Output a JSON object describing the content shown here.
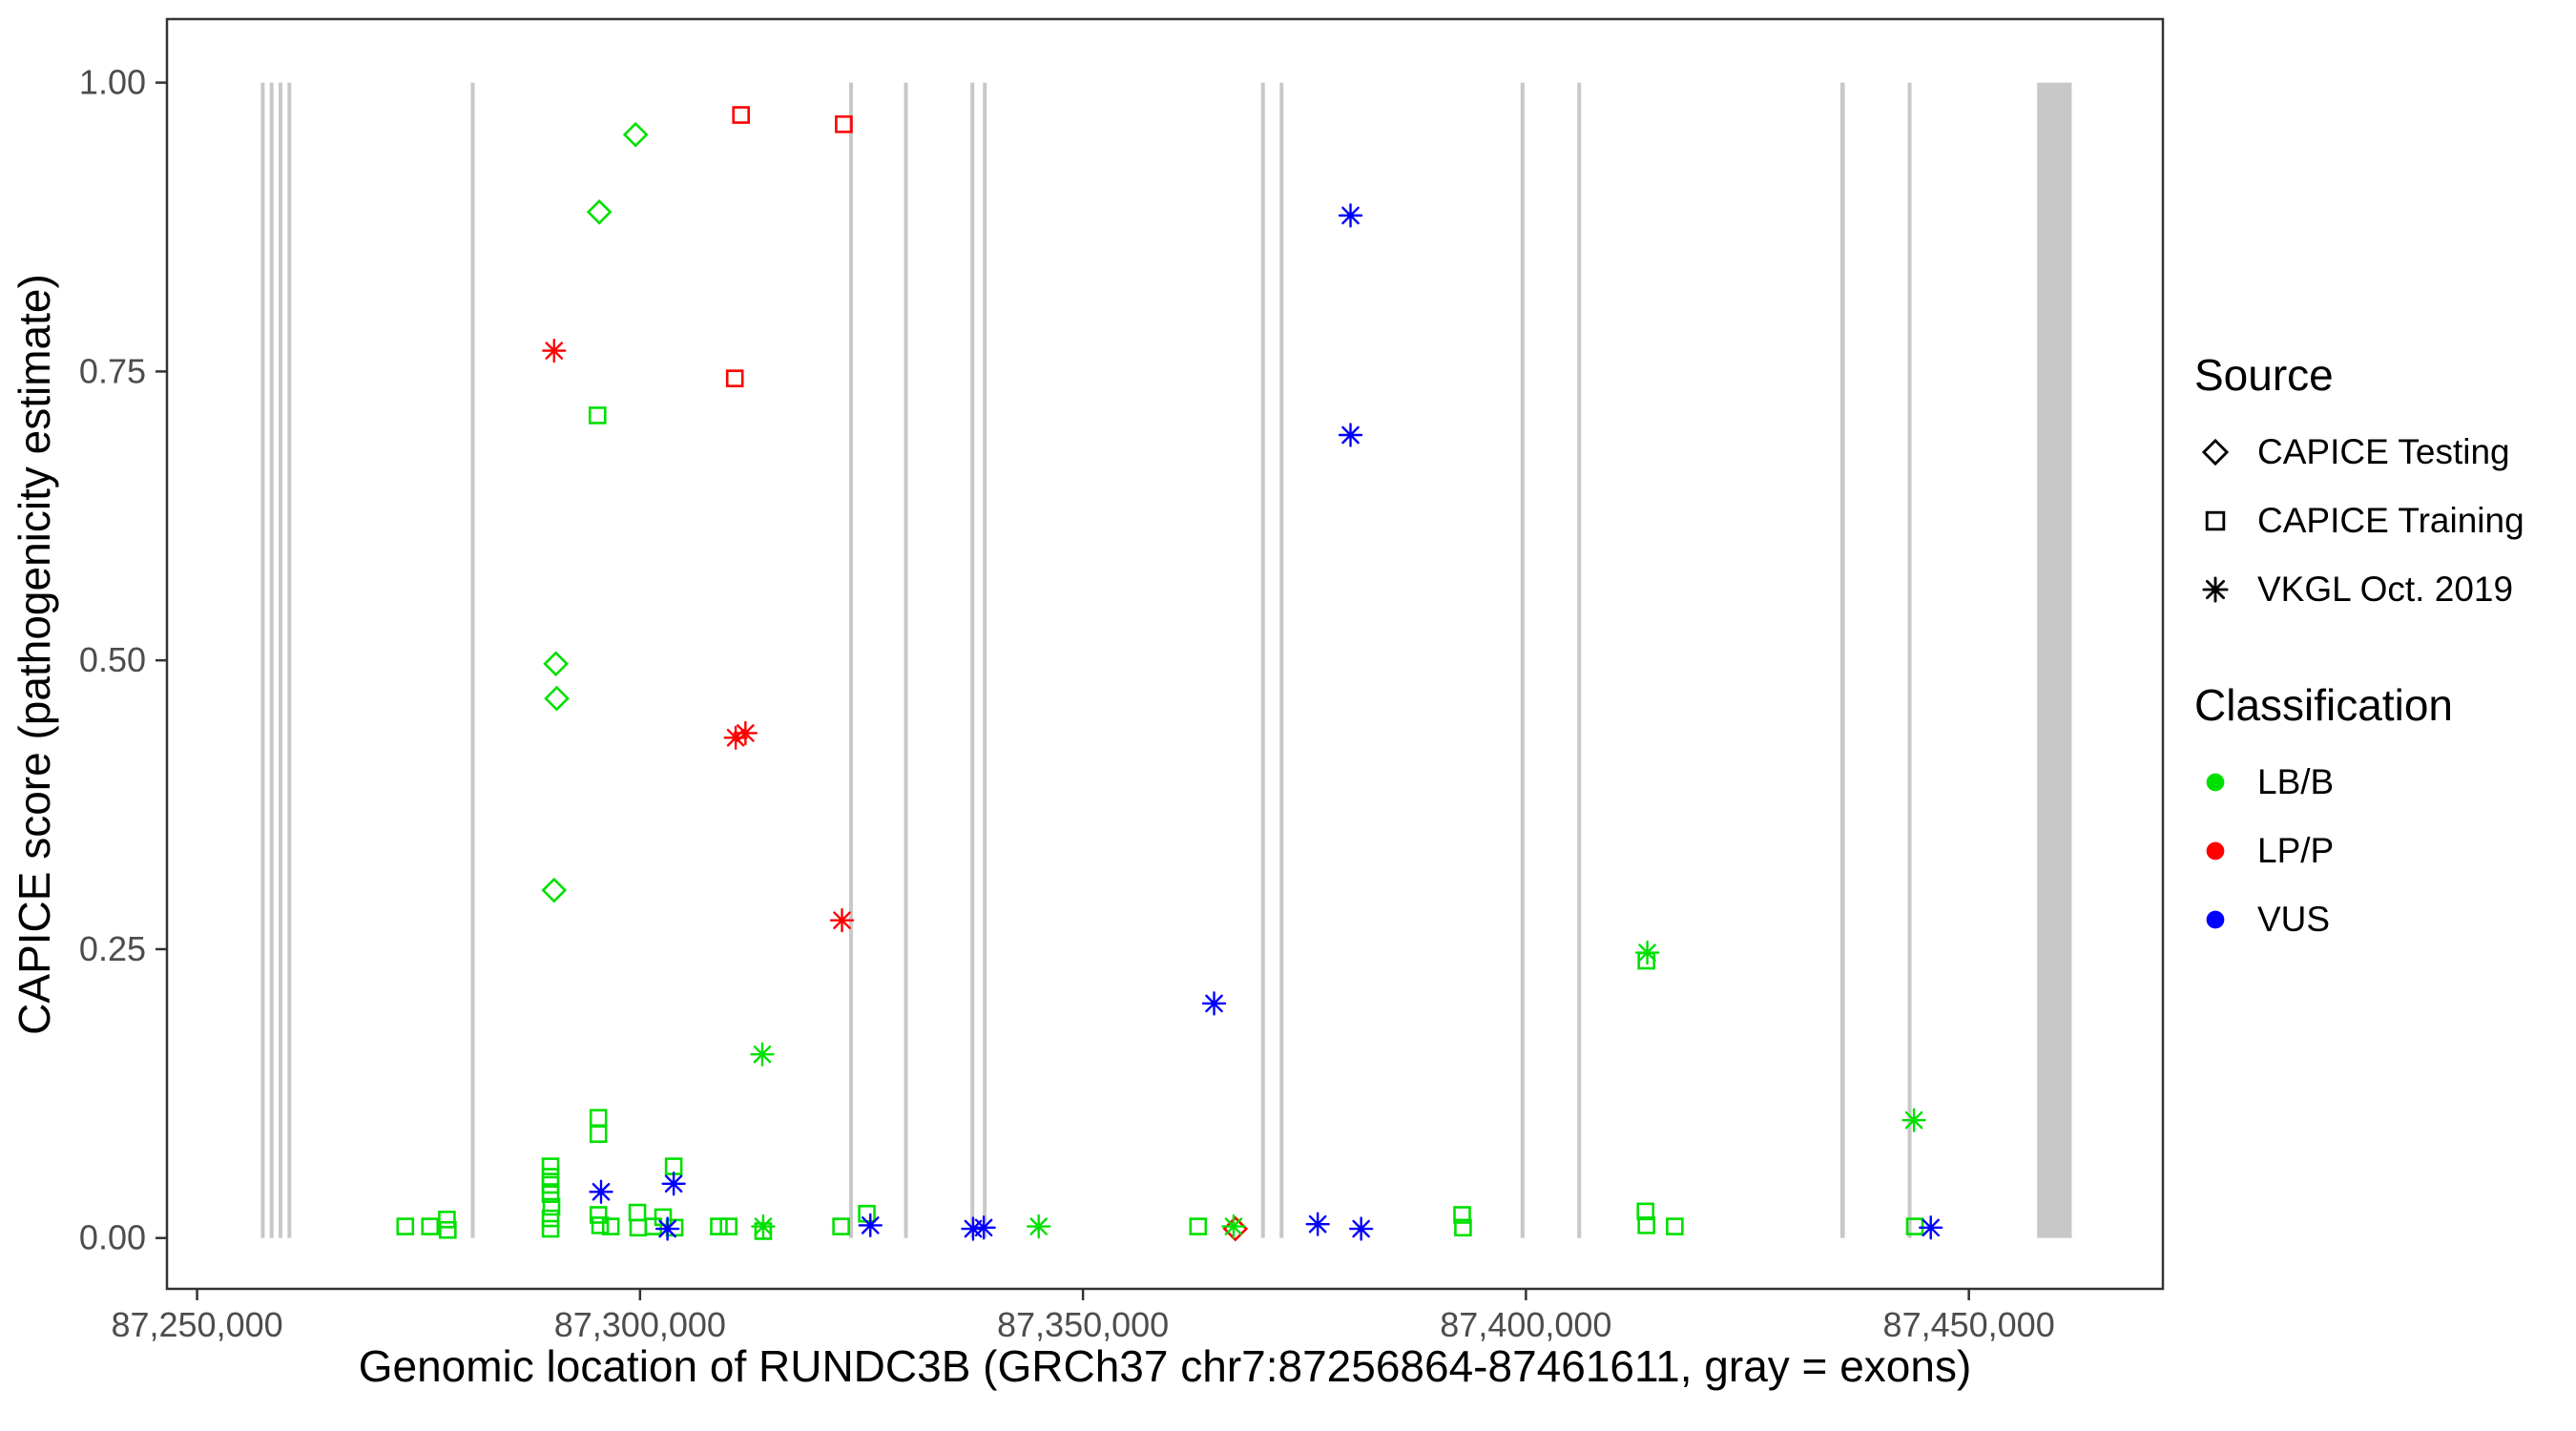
{
  "chart_data": {
    "type": "scatter",
    "xlabel": "Genomic location of RUNDC3B (GRCh37 chr7:87256864-87461611, gray = exons)",
    "ylabel": "CAPICE score (pathogenicity estimate)",
    "x_domain": [
      87246600,
      87471900
    ],
    "y_domain": [
      -0.044,
      1.055
    ],
    "x_ticks": [
      {
        "value": 87250000,
        "label": "87,250,000"
      },
      {
        "value": 87300000,
        "label": "87,300,000"
      },
      {
        "value": 87350000,
        "label": "87,350,000"
      },
      {
        "value": 87400000,
        "label": "87,400,000"
      },
      {
        "value": 87450000,
        "label": "87,450,000"
      }
    ],
    "y_ticks": [
      {
        "value": 0.0,
        "label": "0.00"
      },
      {
        "value": 0.25,
        "label": "0.25"
      },
      {
        "value": 0.5,
        "label": "0.50"
      },
      {
        "value": 0.75,
        "label": "0.75"
      },
      {
        "value": 1.0,
        "label": "1.00"
      }
    ],
    "legend_source": {
      "title": "Source",
      "items": [
        {
          "label": "CAPICE Testing",
          "shape": "diamond"
        },
        {
          "label": "CAPICE Training",
          "shape": "square"
        },
        {
          "label": "VKGL Oct. 2019",
          "shape": "asterisk"
        }
      ]
    },
    "legend_classification": {
      "title": "Classification",
      "items": [
        {
          "label": "LB/B",
          "color": "#00E000"
        },
        {
          "label": "LP/P",
          "color": "#FF0000"
        },
        {
          "label": "VUS",
          "color": "#0000FF"
        }
      ]
    },
    "colors": {
      "LB/B": "#00E000",
      "LP/P": "#FF0000",
      "VUS": "#0000FF"
    },
    "shapes": {
      "CAPICE Testing": "diamond",
      "CAPICE Training": "square",
      "VKGL Oct. 2019": "asterisk"
    },
    "exon_color": "#C8C8C8",
    "exon_band": [
      0,
      1
    ],
    "exons": [
      [
        87257200,
        87257600
      ],
      [
        87258200,
        87258600
      ],
      [
        87259200,
        87259600
      ],
      [
        87260200,
        87260600
      ],
      [
        87280900,
        87281300
      ],
      [
        87323600,
        87324000
      ],
      [
        87329800,
        87330200
      ],
      [
        87337300,
        87337700
      ],
      [
        87338700,
        87339100
      ],
      [
        87370100,
        87370500
      ],
      [
        87372200,
        87372600
      ],
      [
        87399400,
        87399800
      ],
      [
        87405800,
        87406200
      ],
      [
        87435500,
        87436000
      ],
      [
        87443100,
        87443500
      ],
      [
        87457700,
        87461611
      ]
    ],
    "points": [
      {
        "x": 87299500,
        "y": 0.955,
        "s": "CAPICE Testing",
        "c": "LB/B"
      },
      {
        "x": 87295400,
        "y": 0.888,
        "s": "CAPICE Testing",
        "c": "LB/B"
      },
      {
        "x": 87290500,
        "y": 0.497,
        "s": "CAPICE Testing",
        "c": "LB/B"
      },
      {
        "x": 87290600,
        "y": 0.467,
        "s": "CAPICE Testing",
        "c": "LB/B"
      },
      {
        "x": 87290300,
        "y": 0.301,
        "s": "CAPICE Testing",
        "c": "LB/B"
      },
      {
        "x": 87367200,
        "y": 0.008,
        "s": "CAPICE Testing",
        "c": "LP/P"
      },
      {
        "x": 87311400,
        "y": 0.972,
        "s": "CAPICE Training",
        "c": "LP/P"
      },
      {
        "x": 87323000,
        "y": 0.964,
        "s": "CAPICE Training",
        "c": "LP/P"
      },
      {
        "x": 87310700,
        "y": 0.744,
        "s": "CAPICE Training",
        "c": "LP/P"
      },
      {
        "x": 87295200,
        "y": 0.712,
        "s": "CAPICE Training",
        "c": "LB/B"
      },
      {
        "x": 87295300,
        "y": 0.104,
        "s": "CAPICE Training",
        "c": "LB/B"
      },
      {
        "x": 87295300,
        "y": 0.09,
        "s": "CAPICE Training",
        "c": "LB/B"
      },
      {
        "x": 87273500,
        "y": 0.01,
        "s": "CAPICE Training",
        "c": "LB/B"
      },
      {
        "x": 87276300,
        "y": 0.01,
        "s": "CAPICE Training",
        "c": "LB/B"
      },
      {
        "x": 87278200,
        "y": 0.016,
        "s": "CAPICE Training",
        "c": "LB/B"
      },
      {
        "x": 87278300,
        "y": 0.007,
        "s": "CAPICE Training",
        "c": "LB/B"
      },
      {
        "x": 87289900,
        "y": 0.062,
        "s": "CAPICE Training",
        "c": "LB/B"
      },
      {
        "x": 87289900,
        "y": 0.053,
        "s": "CAPICE Training",
        "c": "LB/B"
      },
      {
        "x": 87289900,
        "y": 0.046,
        "s": "CAPICE Training",
        "c": "LB/B"
      },
      {
        "x": 87289900,
        "y": 0.038,
        "s": "CAPICE Training",
        "c": "LB/B"
      },
      {
        "x": 87290000,
        "y": 0.027,
        "s": "CAPICE Training",
        "c": "LB/B"
      },
      {
        "x": 87289900,
        "y": 0.017,
        "s": "CAPICE Training",
        "c": "LB/B"
      },
      {
        "x": 87289900,
        "y": 0.008,
        "s": "CAPICE Training",
        "c": "LB/B"
      },
      {
        "x": 87295300,
        "y": 0.02,
        "s": "CAPICE Training",
        "c": "LB/B"
      },
      {
        "x": 87295500,
        "y": 0.011,
        "s": "CAPICE Training",
        "c": "LB/B"
      },
      {
        "x": 87296700,
        "y": 0.01,
        "s": "CAPICE Training",
        "c": "LB/B"
      },
      {
        "x": 87299700,
        "y": 0.022,
        "s": "CAPICE Training",
        "c": "LB/B"
      },
      {
        "x": 87299800,
        "y": 0.009,
        "s": "CAPICE Training",
        "c": "LB/B"
      },
      {
        "x": 87301500,
        "y": 0.01,
        "s": "CAPICE Training",
        "c": "LB/B"
      },
      {
        "x": 87302600,
        "y": 0.018,
        "s": "CAPICE Training",
        "c": "LB/B"
      },
      {
        "x": 87303800,
        "y": 0.062,
        "s": "CAPICE Training",
        "c": "LB/B"
      },
      {
        "x": 87303900,
        "y": 0.009,
        "s": "CAPICE Training",
        "c": "LB/B"
      },
      {
        "x": 87308900,
        "y": 0.01,
        "s": "CAPICE Training",
        "c": "LB/B"
      },
      {
        "x": 87310000,
        "y": 0.01,
        "s": "CAPICE Training",
        "c": "LB/B"
      },
      {
        "x": 87313900,
        "y": 0.006,
        "s": "CAPICE Training",
        "c": "LB/B"
      },
      {
        "x": 87322700,
        "y": 0.01,
        "s": "CAPICE Training",
        "c": "LB/B"
      },
      {
        "x": 87325600,
        "y": 0.021,
        "s": "CAPICE Training",
        "c": "LB/B"
      },
      {
        "x": 87363000,
        "y": 0.01,
        "s": "CAPICE Training",
        "c": "LB/B"
      },
      {
        "x": 87392800,
        "y": 0.02,
        "s": "CAPICE Training",
        "c": "LB/B"
      },
      {
        "x": 87392900,
        "y": 0.009,
        "s": "CAPICE Training",
        "c": "LB/B"
      },
      {
        "x": 87413600,
        "y": 0.24,
        "s": "CAPICE Training",
        "c": "LB/B"
      },
      {
        "x": 87413500,
        "y": 0.023,
        "s": "CAPICE Training",
        "c": "LB/B"
      },
      {
        "x": 87413600,
        "y": 0.011,
        "s": "CAPICE Training",
        "c": "LB/B"
      },
      {
        "x": 87416800,
        "y": 0.01,
        "s": "CAPICE Training",
        "c": "LB/B"
      },
      {
        "x": 87443900,
        "y": 0.01,
        "s": "CAPICE Training",
        "c": "LB/B"
      },
      {
        "x": 87290300,
        "y": 0.768,
        "s": "VKGL Oct. 2019",
        "c": "LP/P"
      },
      {
        "x": 87310800,
        "y": 0.433,
        "s": "VKGL Oct. 2019",
        "c": "LP/P"
      },
      {
        "x": 87311900,
        "y": 0.437,
        "s": "VKGL Oct. 2019",
        "c": "LP/P"
      },
      {
        "x": 87322800,
        "y": 0.275,
        "s": "VKGL Oct. 2019",
        "c": "LP/P"
      },
      {
        "x": 87313800,
        "y": 0.159,
        "s": "VKGL Oct. 2019",
        "c": "LB/B"
      },
      {
        "x": 87413700,
        "y": 0.247,
        "s": "VKGL Oct. 2019",
        "c": "LB/B"
      },
      {
        "x": 87443800,
        "y": 0.102,
        "s": "VKGL Oct. 2019",
        "c": "LB/B"
      },
      {
        "x": 87313900,
        "y": 0.01,
        "s": "VKGL Oct. 2019",
        "c": "LB/B"
      },
      {
        "x": 87345000,
        "y": 0.01,
        "s": "VKGL Oct. 2019",
        "c": "LB/B"
      },
      {
        "x": 87367000,
        "y": 0.01,
        "s": "VKGL Oct. 2019",
        "c": "LB/B"
      },
      {
        "x": 87380200,
        "y": 0.885,
        "s": "VKGL Oct. 2019",
        "c": "VUS"
      },
      {
        "x": 87380200,
        "y": 0.695,
        "s": "VKGL Oct. 2019",
        "c": "VUS"
      },
      {
        "x": 87364800,
        "y": 0.203,
        "s": "VKGL Oct. 2019",
        "c": "VUS"
      },
      {
        "x": 87295600,
        "y": 0.04,
        "s": "VKGL Oct. 2019",
        "c": "VUS"
      },
      {
        "x": 87303800,
        "y": 0.047,
        "s": "VKGL Oct. 2019",
        "c": "VUS"
      },
      {
        "x": 87303100,
        "y": 0.008,
        "s": "VKGL Oct. 2019",
        "c": "VUS"
      },
      {
        "x": 87326000,
        "y": 0.011,
        "s": "VKGL Oct. 2019",
        "c": "VUS"
      },
      {
        "x": 87337600,
        "y": 0.008,
        "s": "VKGL Oct. 2019",
        "c": "VUS"
      },
      {
        "x": 87338800,
        "y": 0.009,
        "s": "VKGL Oct. 2019",
        "c": "VUS"
      },
      {
        "x": 87376500,
        "y": 0.012,
        "s": "VKGL Oct. 2019",
        "c": "VUS"
      },
      {
        "x": 87381400,
        "y": 0.008,
        "s": "VKGL Oct. 2019",
        "c": "VUS"
      },
      {
        "x": 87445700,
        "y": 0.009,
        "s": "VKGL Oct. 2019",
        "c": "VUS"
      }
    ]
  }
}
